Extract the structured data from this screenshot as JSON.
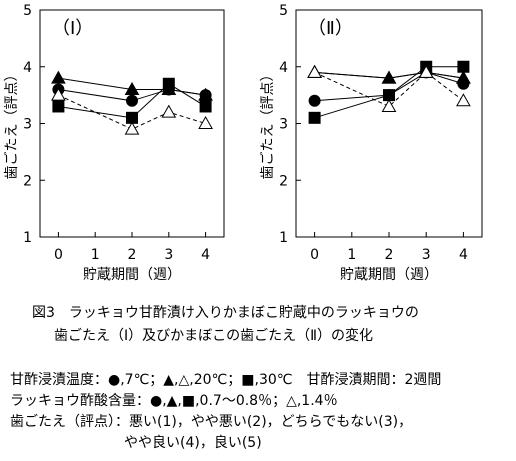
{
  "chart_data": [
    {
      "type": "line",
      "panel_label": "（Ⅰ）",
      "x": [
        0,
        2,
        3,
        4
      ],
      "series": [
        {
          "marker": "filled-triangle",
          "line": "solid",
          "values": [
            3.8,
            3.6,
            3.6,
            3.5
          ]
        },
        {
          "marker": "filled-circle",
          "line": "solid",
          "values": [
            3.6,
            3.4,
            3.6,
            3.5
          ]
        },
        {
          "marker": "filled-square",
          "line": "solid",
          "values": [
            3.3,
            3.1,
            3.7,
            3.3
          ]
        },
        {
          "marker": "open-triangle",
          "line": "dashed",
          "values": [
            3.5,
            2.9,
            3.2,
            3.0
          ]
        }
      ],
      "xlabel": "貯蔵期間（週）",
      "ylabel": "歯ごたえ（評点）",
      "xticks": [
        "0",
        "1",
        "2",
        "3",
        "4"
      ],
      "yticks": [
        "1",
        "2",
        "3",
        "4",
        "5"
      ],
      "xlim": [
        -0.5,
        4.5
      ],
      "ylim": [
        1,
        5
      ],
      "grid": false
    },
    {
      "type": "line",
      "panel_label": "（Ⅱ）",
      "x": [
        0,
        2,
        3,
        4
      ],
      "series": [
        {
          "marker": "open-triangle",
          "line": "solid",
          "values": [
            3.9,
            3.8,
            3.9,
            3.8
          ]
        },
        {
          "marker": "filled-triangle",
          "line": "solid",
          "values": [
            3.9,
            3.8,
            3.9,
            3.8
          ]
        },
        {
          "marker": "filled-circle",
          "line": "solid",
          "values": [
            3.4,
            3.5,
            3.9,
            3.7
          ]
        },
        {
          "marker": "filled-square",
          "line": "solid",
          "values": [
            3.1,
            3.5,
            4.0,
            4.0
          ]
        },
        {
          "marker": "open-triangle",
          "line": "dashed",
          "values": [
            3.9,
            3.3,
            3.9,
            3.4
          ]
        }
      ],
      "xlabel": "貯蔵期間（週）",
      "ylabel": "歯ごたえ（評点）",
      "xticks": [
        "0",
        "1",
        "2",
        "3",
        "4"
      ],
      "yticks": [
        "1",
        "2",
        "3",
        "4",
        "5"
      ],
      "xlim": [
        -0.5,
        4.5
      ],
      "ylim": [
        1,
        5
      ],
      "grid": false
    }
  ],
  "caption": {
    "line1": "図3　ラッキョウ甘酢漬け入りかまぼこ貯蔵中のラッキョウの",
    "line2": "歯ごたえ（Ⅰ）及びかまぼこの歯ごたえ（Ⅱ）の変化"
  },
  "notes": {
    "temperature": "甘酢浸漬温度：●,7℃；▲,△,20℃；■,30℃　甘酢浸漬期間：2週間",
    "acidity": "ラッキョウ酢酸含量：●,▲,■,0.7～0.8％；△,1.4％",
    "score_line1": "歯ごたえ（評点）：悪い(1)，やや悪い(2)，どちらでもない(3)，",
    "score_line2": "やや良い(4)，良い(5)"
  }
}
